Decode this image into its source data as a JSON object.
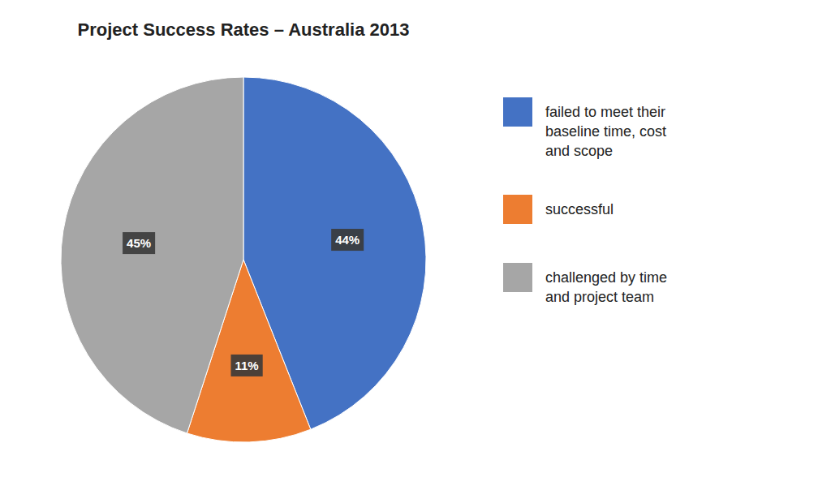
{
  "chart_data": {
    "type": "pie",
    "title": "Project Success Rates – Australia 2013",
    "categories": [
      "failed to meet their\nbaseline time, cost\nand scope",
      "successful",
      "challenged by time\nand project team"
    ],
    "values": [
      44,
      11,
      45
    ],
    "value_labels": [
      "44%",
      "11%",
      "45%"
    ],
    "colors": [
      "#4472C4",
      "#ED7D31",
      "#A6A6A6"
    ],
    "data_labels": true,
    "legend": "right"
  }
}
